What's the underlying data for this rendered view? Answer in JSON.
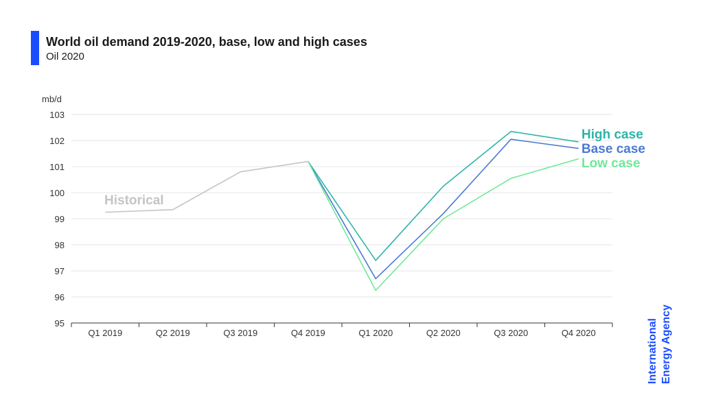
{
  "header": {
    "title": "World oil demand 2019-2020, base, low and high cases",
    "subtitle": "Oil 2020"
  },
  "logo": {
    "line1": "International",
    "line2": "Energy Agency"
  },
  "colors": {
    "accent": "#1a4cff",
    "historical": "#c4c4c4",
    "high": "#2bb5a8",
    "base": "#4a7bd0",
    "low": "#6ee89a",
    "grid": "#e6e6e6",
    "axis": "#333333",
    "text": "#333333"
  },
  "chart_data": {
    "type": "line",
    "ylabel": "mb/d",
    "categories": [
      "Q1 2019",
      "Q2 2019",
      "Q3 2019",
      "Q4 2019",
      "Q1 2020",
      "Q2 2020",
      "Q3 2020",
      "Q4 2020"
    ],
    "ylim": [
      95,
      103
    ],
    "yticks": [
      95,
      96,
      97,
      98,
      99,
      100,
      101,
      102,
      103
    ],
    "grid": true,
    "series": [
      {
        "name": "Historical",
        "key": "historical",
        "values": [
          99.25,
          99.35,
          100.8,
          101.2,
          null,
          null,
          null,
          null
        ]
      },
      {
        "name": "High case",
        "key": "high",
        "values": [
          null,
          null,
          null,
          101.2,
          97.4,
          100.25,
          102.35,
          101.95
        ]
      },
      {
        "name": "Base case",
        "key": "base",
        "values": [
          null,
          null,
          null,
          101.2,
          96.7,
          99.2,
          102.05,
          101.7
        ]
      },
      {
        "name": "Low case",
        "key": "low",
        "values": [
          null,
          null,
          null,
          101.2,
          96.25,
          99.0,
          100.55,
          101.3
        ]
      }
    ]
  }
}
